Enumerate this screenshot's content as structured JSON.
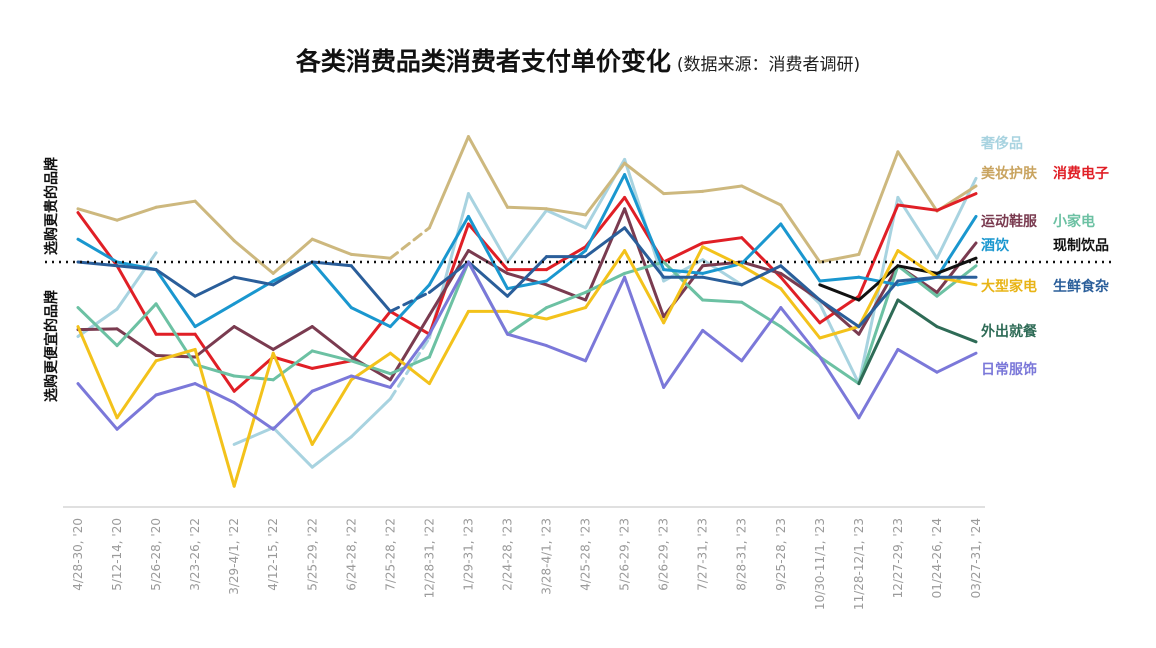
{
  "chart_data": {
    "type": "line",
    "title": "各类消费品类消费者支付单价变化",
    "subtitle": "(数据来源：消费者调研)",
    "y_label_upper": "选购更贵的品牌",
    "y_label_lower": "选购更便宜的品牌",
    "grid": false,
    "reference_line": "dotted horizontal baseline",
    "categories": [
      "4/28-30, '20",
      "5/12-14, '20",
      "5/26-28, '20",
      "3/23-26, '22",
      "3/29-4/1, '22",
      "4/12-15, '22",
      "5/25-29, '22",
      "6/24-28, '22",
      "7/25-28, '22",
      "12/28-31, '22",
      "1/29-31, '23",
      "2/24-28, '23",
      "3/28-4/1, '23",
      "4/25-28, '23",
      "5/26-29, '23",
      "6/26-29, '23",
      "7/27-31, '23",
      "8/28-31, '23",
      "9/25-28, '23",
      "10/30-11/1, '23",
      "11/28-12/1, '23",
      "12/27-29, '23",
      "01/24-26, '24",
      "03/27-31, '24"
    ],
    "series": [
      {
        "name": "奢侈品",
        "color": "#a8d3e0",
        "label_color": "#a8d3e0",
        "values": [
          -0.98,
          -0.62,
          0.12,
          null,
          -2.4,
          -2.18,
          -2.7,
          -2.3,
          -1.8,
          -1.0,
          0.9,
          0.0,
          0.68,
          0.45,
          1.35,
          -0.25,
          0.03,
          -0.3,
          -0.05,
          -0.55,
          -1.6,
          0.85,
          0.05,
          1.1
        ],
        "dashed_segments": [
          8
        ]
      },
      {
        "name": "美妆护肤",
        "color": "#cdb87e",
        "label_color": "#c9a460",
        "values": [
          0.7,
          0.55,
          0.72,
          0.8,
          0.28,
          -0.15,
          0.3,
          0.1,
          0.05,
          0.45,
          1.65,
          0.72,
          0.7,
          0.62,
          1.3,
          0.9,
          0.93,
          1.0,
          0.75,
          0.0,
          0.1,
          1.45,
          0.67,
          1.0
        ],
        "dashed_segments": [
          8
        ]
      },
      {
        "name": "消费电子",
        "color": "#e01f26",
        "label_color": "#e01f26",
        "values": [
          0.65,
          -0.05,
          -0.95,
          -0.95,
          -1.7,
          -1.25,
          -1.4,
          -1.3,
          -0.65,
          -0.95,
          0.5,
          -0.1,
          -0.1,
          0.2,
          0.85,
          0.0,
          0.25,
          0.32,
          -0.2,
          -0.8,
          -0.45,
          0.75,
          0.68,
          0.9
        ]
      },
      {
        "name": "运动鞋服",
        "color": "#7a3b50",
        "label_color": "#7a3b50",
        "values": [
          -0.89,
          -0.88,
          -1.23,
          -1.25,
          -0.85,
          -1.15,
          -0.85,
          -1.25,
          -1.55,
          -0.7,
          0.15,
          -0.15,
          -0.3,
          -0.5,
          0.7,
          -0.72,
          -0.05,
          0.0,
          -0.15,
          -0.5,
          -0.95,
          -0.05,
          -0.4,
          0.25
        ]
      },
      {
        "name": "小家电",
        "color": "#6cc1a3",
        "label_color": "#6cc1a3",
        "values": [
          -0.6,
          -1.1,
          -0.55,
          -1.35,
          -1.5,
          -1.55,
          -1.17,
          -1.3,
          -1.47,
          -1.25,
          0.0,
          -0.95,
          -0.6,
          -0.4,
          -0.15,
          -0.0,
          -0.5,
          -0.53,
          -0.85,
          -1.25,
          -1.6,
          -0.05,
          -0.45,
          -0.05
        ]
      },
      {
        "name": "酒饮",
        "color": "#1a97cf",
        "label_color": "#1a97cf",
        "values": [
          0.3,
          0.0,
          -0.1,
          -0.85,
          -0.55,
          -0.25,
          0.0,
          -0.6,
          -0.85,
          -0.3,
          0.6,
          -0.35,
          -0.25,
          0.15,
          1.15,
          -0.1,
          -0.15,
          -0.02,
          0.5,
          -0.25,
          -0.2,
          -0.3,
          -0.2,
          0.6
        ]
      },
      {
        "name": "现制饮品",
        "color": "#111111",
        "label_color": "#111111",
        "values": [
          null,
          null,
          null,
          null,
          null,
          null,
          null,
          null,
          null,
          null,
          null,
          null,
          null,
          null,
          null,
          null,
          null,
          null,
          null,
          -0.3,
          -0.5,
          -0.05,
          -0.15,
          0.05
        ]
      },
      {
        "name": "大型家电",
        "color": "#f3c21b",
        "label_color": "#e8b416",
        "values": [
          -0.85,
          -2.05,
          -1.3,
          -1.15,
          -2.95,
          -1.2,
          -2.4,
          -1.55,
          -1.2,
          -1.6,
          -0.65,
          -0.65,
          -0.75,
          -0.6,
          0.15,
          -0.8,
          0.2,
          -0.05,
          -0.35,
          -1.0,
          -0.85,
          0.15,
          -0.2,
          -0.3
        ]
      },
      {
        "name": "生鲜食杂",
        "color": "#2a5e9a",
        "label_color": "#2a5e9a",
        "values": [
          0.0,
          -0.05,
          -0.1,
          -0.45,
          -0.2,
          -0.3,
          0.0,
          -0.05,
          -0.65,
          -0.4,
          0.0,
          -0.45,
          0.07,
          0.07,
          0.45,
          -0.2,
          -0.2,
          -0.3,
          -0.05,
          -0.5,
          -0.85,
          -0.25,
          -0.2,
          -0.2
        ],
        "dashed_segments": [
          8
        ]
      },
      {
        "name": "外出就餐",
        "color": "#2e6b56",
        "label_color": "#2e6b56",
        "values": [
          null,
          null,
          null,
          null,
          null,
          null,
          null,
          null,
          null,
          null,
          null,
          null,
          null,
          null,
          null,
          null,
          null,
          null,
          null,
          null,
          -1.6,
          -0.5,
          -0.85,
          -1.05
        ]
      },
      {
        "name": "日常服饰",
        "color": "#7b78d9",
        "label_color": "#7b78d9",
        "values": [
          -1.6,
          -2.2,
          -1.75,
          -1.6,
          -1.85,
          -2.2,
          -1.7,
          -1.5,
          -1.65,
          -0.95,
          0.0,
          -0.95,
          -1.1,
          -1.3,
          -0.2,
          -1.65,
          -0.9,
          -1.3,
          -0.6,
          -1.25,
          -2.05,
          -1.15,
          -1.45,
          -1.2
        ]
      }
    ]
  }
}
